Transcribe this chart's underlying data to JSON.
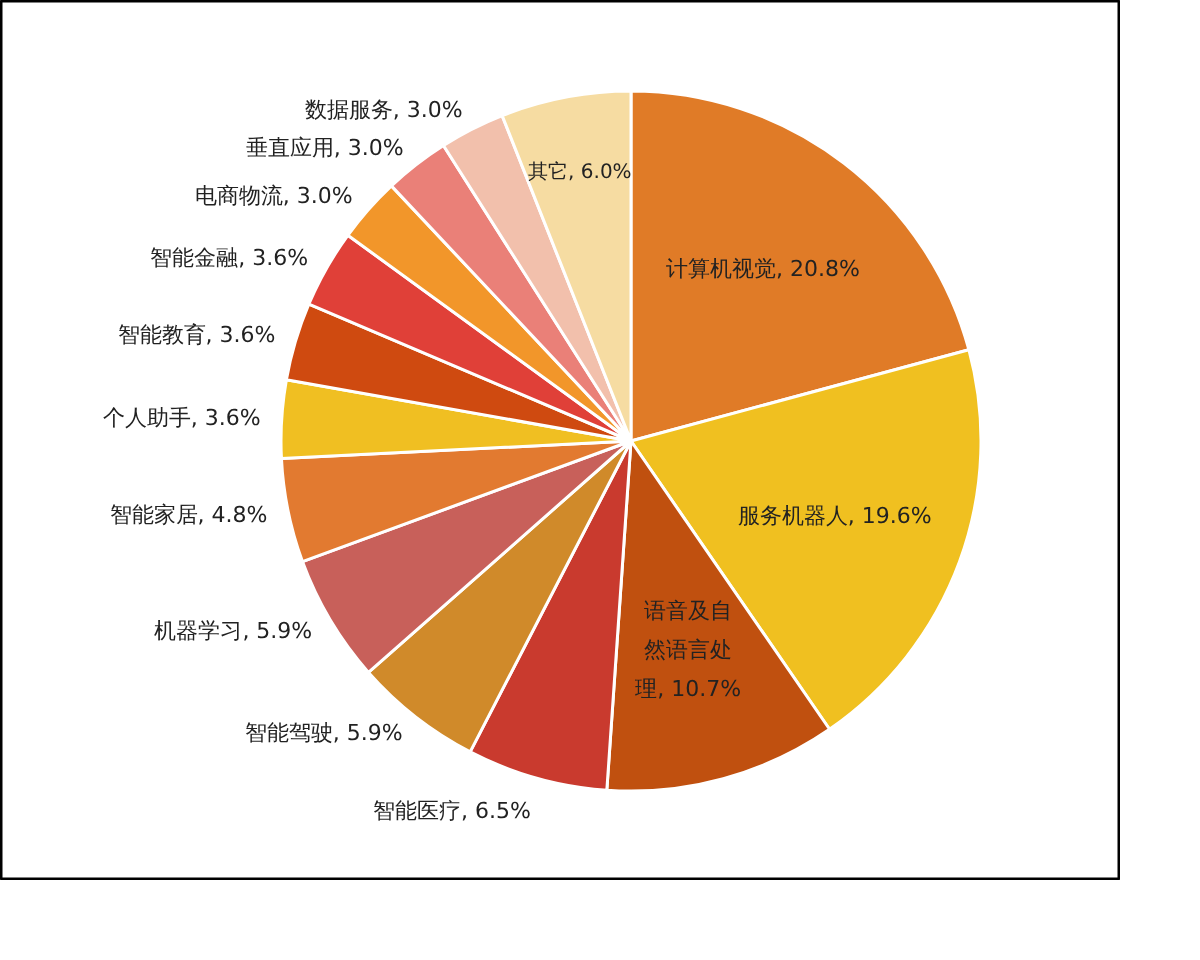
{
  "chart_data": {
    "type": "pie",
    "categories": [
      "计算机视觉",
      "服务机器人",
      "语音及自然语言处理",
      "智能医疗",
      "智能驾驶",
      "机器学习",
      "智能家居",
      "个人助手",
      "智能教育",
      "智能金融",
      "电商物流",
      "垂直应用",
      "数据服务",
      "其它"
    ],
    "values": [
      20.8,
      19.6,
      10.7,
      6.5,
      5.9,
      5.9,
      4.8,
      3.6,
      3.6,
      3.6,
      3.0,
      3.0,
      3.0,
      6.0
    ],
    "value_labels": [
      "20.8%",
      "19.6%",
      "10.7%",
      "6.5%",
      "5.9%",
      "5.9%",
      "4.8%",
      "3.6%",
      "3.6%",
      "3.6%",
      "3.0%",
      "3.0%",
      "3.0%",
      "6.0%"
    ],
    "colors": [
      "#e07b27",
      "#f0c020",
      "#c0500f",
      "#c93a2e",
      "#d08a2a",
      "#c8605a",
      "#e27a30",
      "#f0bf22",
      "#cf4a10",
      "#e04038",
      "#f2962a",
      "#ea8078",
      "#f2c0ac",
      "#f6dca2"
    ]
  }
}
